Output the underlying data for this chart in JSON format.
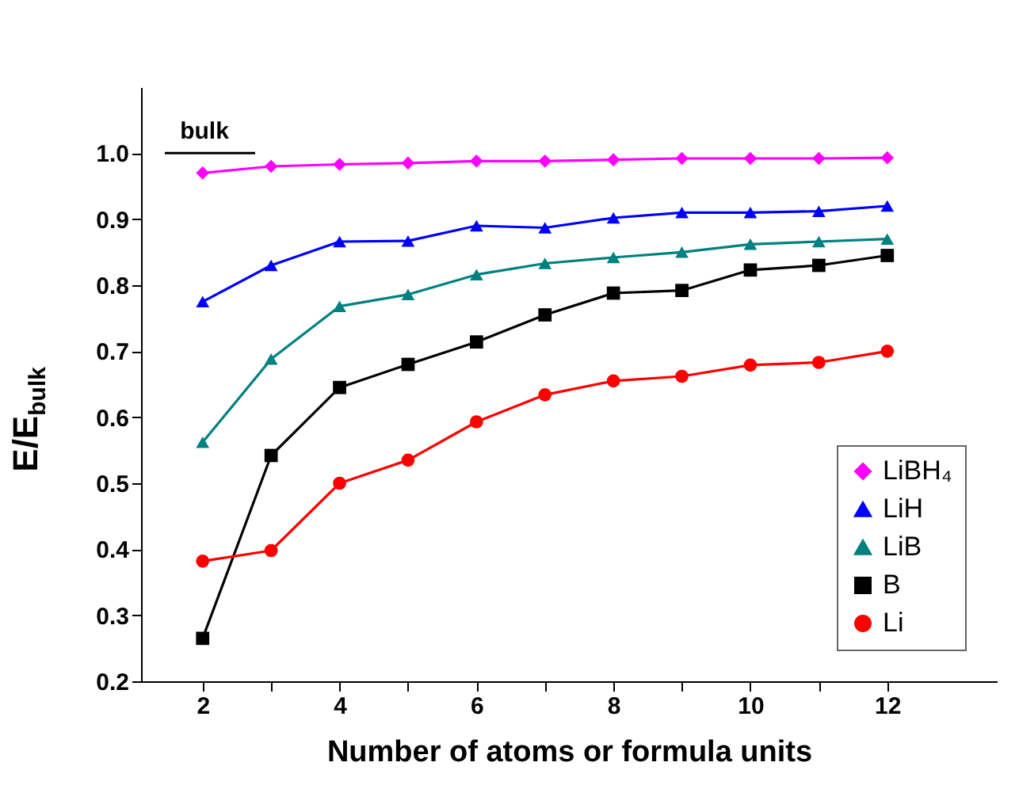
{
  "chart_data": {
    "type": "line",
    "xlabel": "Number of atoms or formula units",
    "ylabel": "E/E$_{bulk}$",
    "x": [
      2,
      3,
      4,
      5,
      6,
      7,
      8,
      9,
      10,
      11,
      12
    ],
    "xlim": [
      1.1,
      13.6
    ],
    "xticks": [
      2,
      {
        "value": 3,
        "label": null
      },
      4,
      {
        "value": 5,
        "label": null
      },
      6,
      {
        "value": 7,
        "label": null
      },
      8,
      {
        "value": 9,
        "label": null
      },
      10,
      {
        "value": 11,
        "label": null
      },
      12
    ],
    "ylim": [
      0.2,
      1.1
    ],
    "yticks": [
      0.2,
      0.3,
      0.4,
      0.5,
      0.6,
      0.7,
      0.8,
      0.9,
      {
        "value": 1.0,
        "label": "1.0"
      }
    ],
    "grid": false,
    "legend": "bottom right",
    "ref_lines": [
      {
        "axis": "y",
        "value": 1.0,
        "label": "bulk",
        "color": "#000000"
      }
    ],
    "series": [
      {
        "name": "LiBH₄",
        "color": "#ff00ff",
        "marker": "diamond",
        "values": [
          0.97,
          0.98,
          0.983,
          0.985,
          0.988,
          0.988,
          0.99,
          0.992,
          0.992,
          0.992,
          0.993
        ]
      },
      {
        "name": "LiH",
        "color": "#0000ff",
        "marker": "triangle",
        "values": [
          0.775,
          0.83,
          0.866,
          0.867,
          0.89,
          0.887,
          0.902,
          0.91,
          0.91,
          0.912,
          0.92
        ]
      },
      {
        "name": "LiB",
        "color": "#008080",
        "marker": "triangle",
        "values": [
          0.562,
          0.688,
          0.768,
          0.786,
          0.816,
          0.833,
          0.842,
          0.85,
          0.862,
          0.866,
          0.87
        ]
      },
      {
        "name": "B",
        "color": "#000000",
        "marker": "square",
        "values": [
          0.265,
          0.542,
          0.645,
          0.68,
          0.714,
          0.755,
          0.788,
          0.792,
          0.823,
          0.83,
          0.845
        ]
      },
      {
        "name": "Li",
        "color": "#ff0000",
        "marker": "circle",
        "values": [
          0.382,
          0.398,
          0.5,
          0.535,
          0.593,
          0.634,
          0.655,
          0.662,
          0.679,
          0.683,
          0.7
        ]
      }
    ]
  }
}
